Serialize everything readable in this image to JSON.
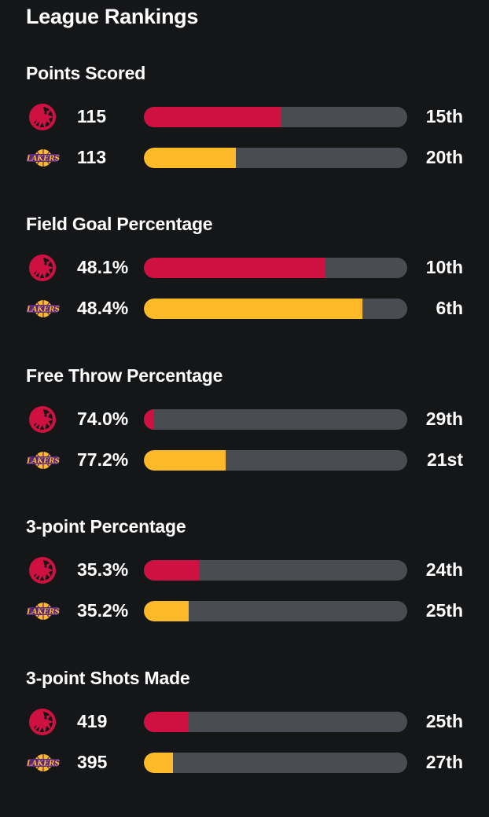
{
  "page": {
    "title": "League Rankings",
    "background": "#151618"
  },
  "teams": {
    "raptors": {
      "logo_icon": "raptors-logo-icon",
      "color": "#ce1141"
    },
    "lakers": {
      "logo_icon": "lakers-logo-icon",
      "color": "#fdb927",
      "logo_text": "LAKERS"
    }
  },
  "track_color": "#494c51",
  "sections": [
    {
      "title": "Points Scored",
      "rows": [
        {
          "team": "raptors",
          "value": "115",
          "rank": "15th",
          "fill_fraction": 0.52
        },
        {
          "team": "lakers",
          "value": "113",
          "rank": "20th",
          "fill_fraction": 0.35
        }
      ]
    },
    {
      "title": "Field Goal Percentage",
      "rows": [
        {
          "team": "raptors",
          "value": "48.1%",
          "rank": "10th",
          "fill_fraction": 0.69
        },
        {
          "team": "lakers",
          "value": "48.4%",
          "rank": "6th",
          "fill_fraction": 0.83
        }
      ]
    },
    {
      "title": "Free Throw Percentage",
      "rows": [
        {
          "team": "raptors",
          "value": "74.0%",
          "rank": "29th",
          "fill_fraction": 0.04
        },
        {
          "team": "lakers",
          "value": "77.2%",
          "rank": "21st",
          "fill_fraction": 0.31
        }
      ]
    },
    {
      "title": "3-point Percentage",
      "rows": [
        {
          "team": "raptors",
          "value": "35.3%",
          "rank": "24th",
          "fill_fraction": 0.21
        },
        {
          "team": "lakers",
          "value": "35.2%",
          "rank": "25th",
          "fill_fraction": 0.17
        }
      ]
    },
    {
      "title": "3-point Shots Made",
      "rows": [
        {
          "team": "raptors",
          "value": "419",
          "rank": "25th",
          "fill_fraction": 0.17
        },
        {
          "team": "lakers",
          "value": "395",
          "rank": "27th",
          "fill_fraction": 0.11
        }
      ]
    }
  ]
}
